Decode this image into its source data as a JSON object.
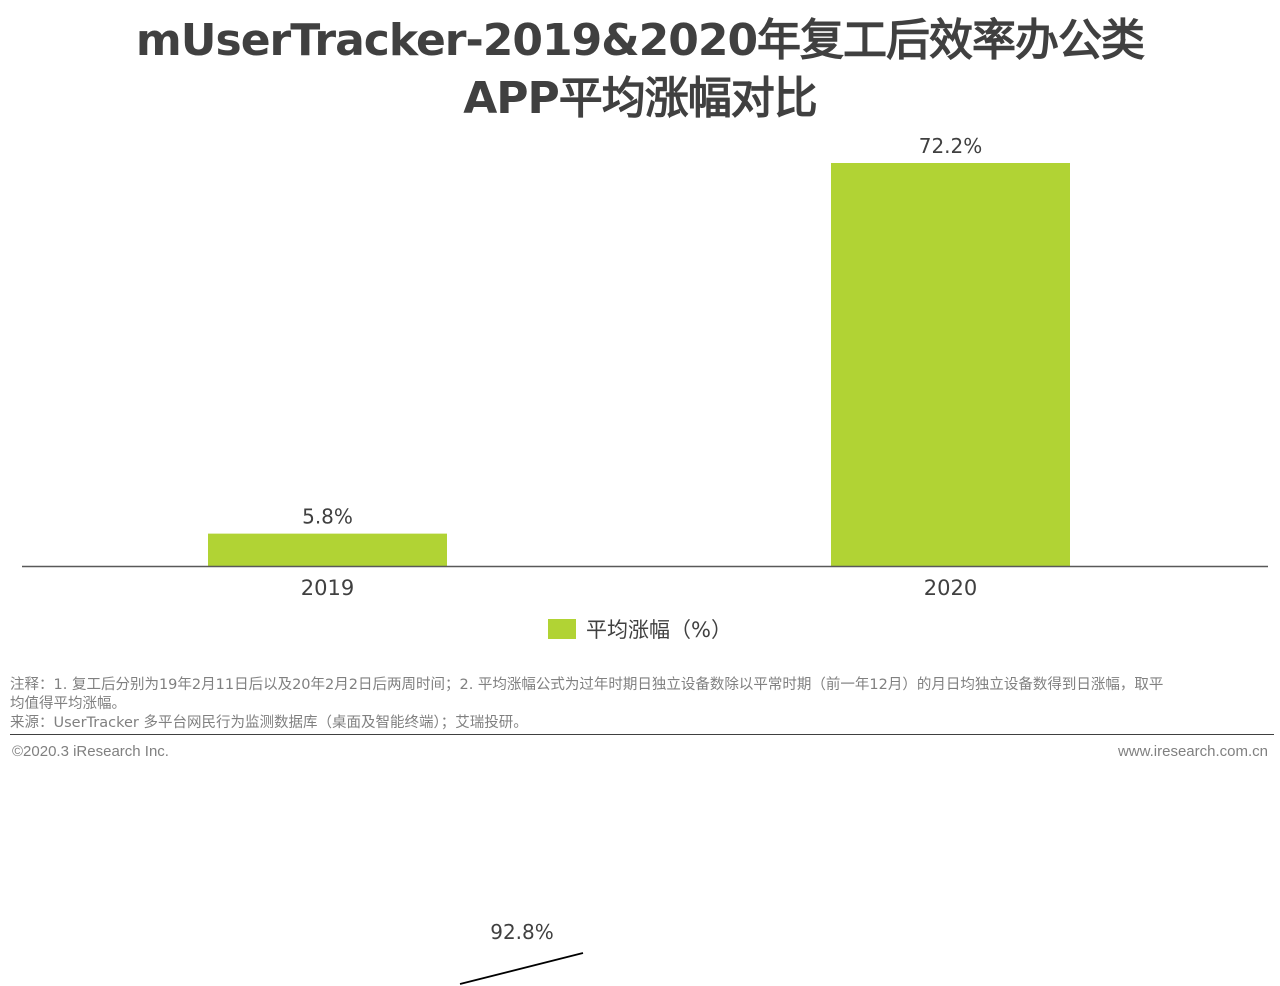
{
  "title": {
    "line1": "mUserTracker-2019&2020年复工后效率办公类",
    "line2": "APP平均涨幅对比"
  },
  "chart_data": {
    "type": "bar",
    "categories": [
      "2019",
      "2020"
    ],
    "series": [
      {
        "name": "平均涨幅（%）",
        "values": [
          5.8,
          72.2
        ],
        "labels": [
          "5.8%",
          "72.2%"
        ],
        "color": "#b1d334"
      }
    ],
    "ylim": [
      0,
      72.2
    ],
    "grid": false,
    "legend_position": "bottom-center",
    "axis_color": "#595959"
  },
  "legend": {
    "label": "平均涨幅（%）",
    "color": "#b1d334"
  },
  "notes": {
    "line1": "注释：1. 复工后分别为19年2月11日后以及20年2月2日后两周时间；2. 平均涨幅公式为过年时期日独立设备数除以平常时期（前一年12月）的月日均独立设备数得到日涨幅，取平",
    "line2": "均值得平均涨幅。",
    "line3": "来源：UserTracker 多平台网民行为监测数据库（桌面及智能终端）；艾瑞投研。"
  },
  "footer": {
    "copyright": "©2020.3 iResearch Inc.",
    "website": "www.iresearch.com.cn"
  },
  "stray_fragment": {
    "label": "92.8%"
  }
}
